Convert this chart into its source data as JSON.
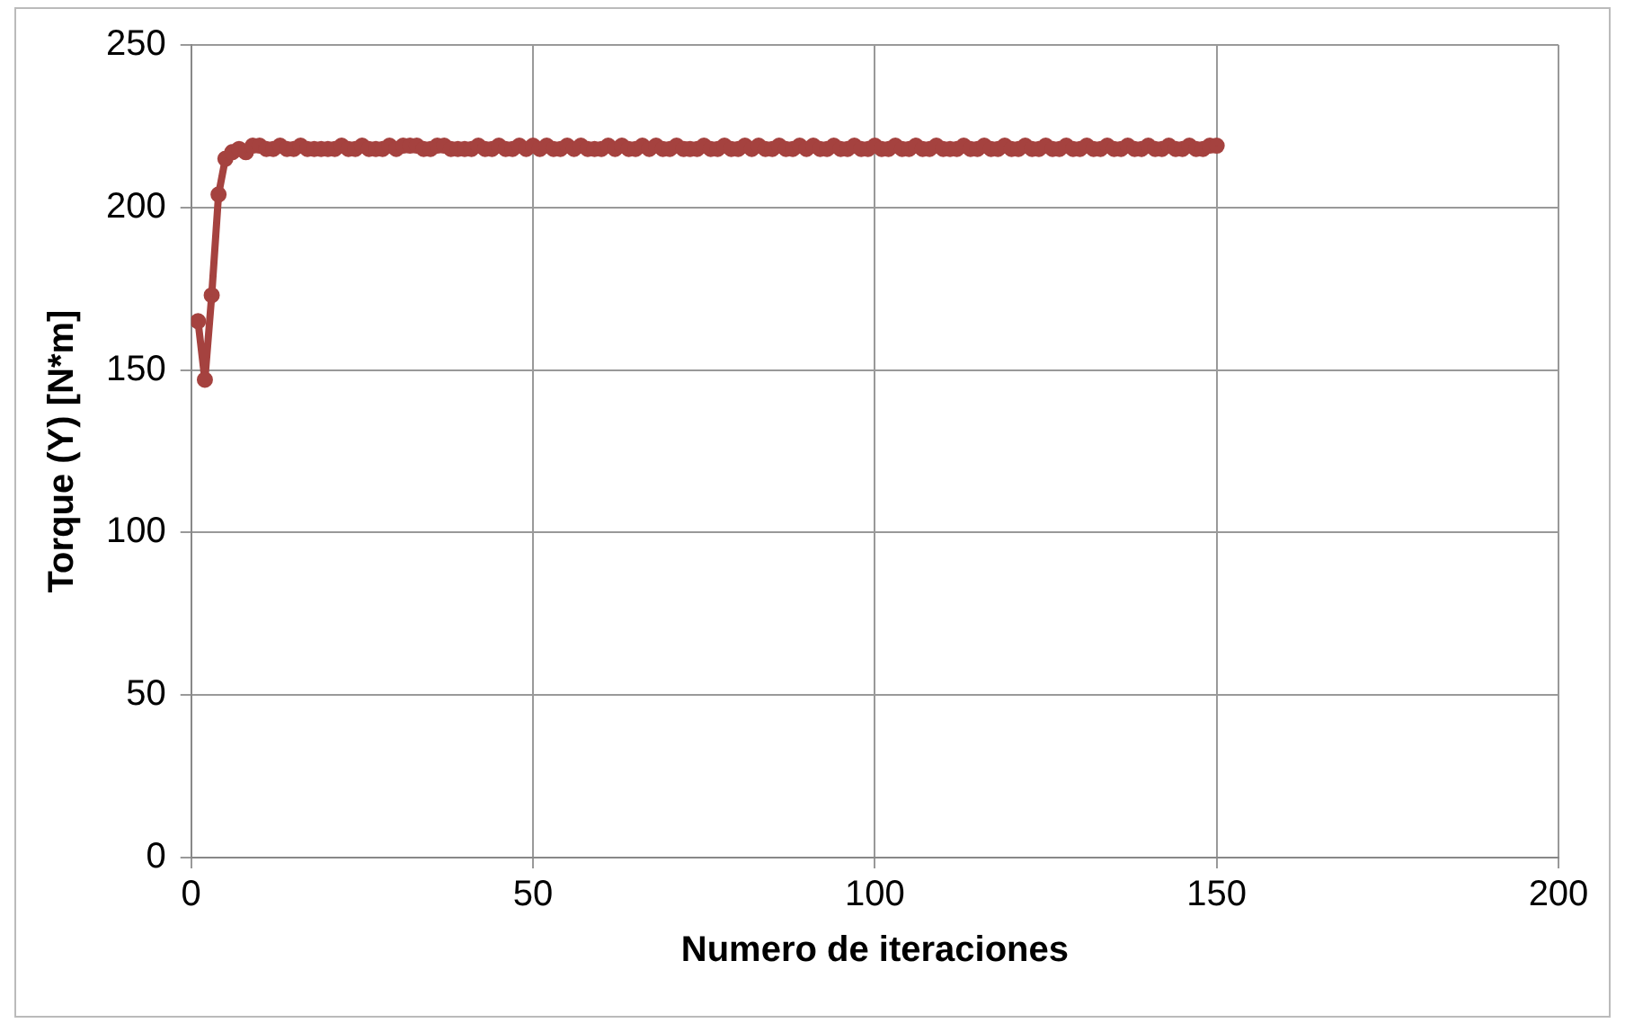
{
  "chart_data": {
    "type": "line",
    "xlabel": "Numero de iteraciones",
    "ylabel": "Torque (Y) [N*m]",
    "xlim": [
      0,
      200
    ],
    "xticks": [
      0,
      50,
      100,
      150,
      200
    ],
    "ylim": [
      0,
      250
    ],
    "yticks": [
      0,
      50,
      100,
      150,
      200,
      250
    ],
    "grid": true,
    "legend": false,
    "marker": "circle",
    "line_style": "solid",
    "x": [
      1,
      2,
      3,
      4,
      5,
      6,
      7,
      8,
      9,
      10,
      11,
      12,
      13,
      14,
      15,
      16,
      17,
      18,
      19,
      20,
      21,
      22,
      23,
      24,
      25,
      26,
      27,
      28,
      29,
      30,
      31,
      32,
      33,
      34,
      35,
      36,
      37,
      38,
      39,
      40,
      41,
      42,
      43,
      44,
      45,
      46,
      47,
      48,
      49,
      50,
      51,
      52,
      53,
      54,
      55,
      56,
      57,
      58,
      59,
      60,
      61,
      62,
      63,
      64,
      65,
      66,
      67,
      68,
      69,
      70,
      71,
      72,
      73,
      74,
      75,
      76,
      77,
      78,
      79,
      80,
      81,
      82,
      83,
      84,
      85,
      86,
      87,
      88,
      89,
      90,
      91,
      92,
      93,
      94,
      95,
      96,
      97,
      98,
      99,
      100,
      101,
      102,
      103,
      104,
      105,
      106,
      107,
      108,
      109,
      110,
      111,
      112,
      113,
      114,
      115,
      116,
      117,
      118,
      119,
      120,
      121,
      122,
      123,
      124,
      125,
      126,
      127,
      128,
      129,
      130,
      131,
      132,
      133,
      134,
      135,
      136,
      137,
      138,
      139,
      140,
      141,
      142,
      143,
      144,
      145,
      146,
      147,
      148,
      149,
      150
    ],
    "series": [
      {
        "color": "#a5423f",
        "values": [
          165,
          147,
          173,
          204,
          215,
          217,
          218,
          217,
          219,
          219,
          218,
          218,
          219,
          218,
          218,
          219,
          218,
          218,
          218,
          218,
          218,
          219,
          218,
          218,
          219,
          218,
          218,
          218,
          219,
          218,
          219,
          219,
          219,
          218,
          218,
          219,
          219,
          218,
          218,
          218,
          218,
          219,
          218,
          218,
          219,
          218,
          218,
          219,
          218,
          219,
          218,
          219,
          218,
          218,
          219,
          218,
          219,
          218,
          218,
          218,
          219,
          218,
          219,
          218,
          218,
          219,
          218,
          219,
          218,
          218,
          219,
          218,
          218,
          218,
          219,
          218,
          218,
          219,
          218,
          218,
          219,
          218,
          219,
          218,
          218,
          219,
          218,
          218,
          219,
          218,
          219,
          218,
          218,
          219,
          218,
          218,
          219,
          218,
          218,
          219,
          218,
          218,
          219,
          218,
          218,
          219,
          218,
          218,
          219,
          218,
          218,
          218,
          219,
          218,
          218,
          219,
          218,
          218,
          219,
          218,
          218,
          219,
          218,
          218,
          219,
          218,
          218,
          219,
          218,
          218,
          219,
          218,
          218,
          219,
          218,
          218,
          219,
          218,
          218,
          219,
          218,
          218,
          219,
          218,
          218,
          219,
          218,
          218,
          219,
          219
        ]
      }
    ]
  }
}
